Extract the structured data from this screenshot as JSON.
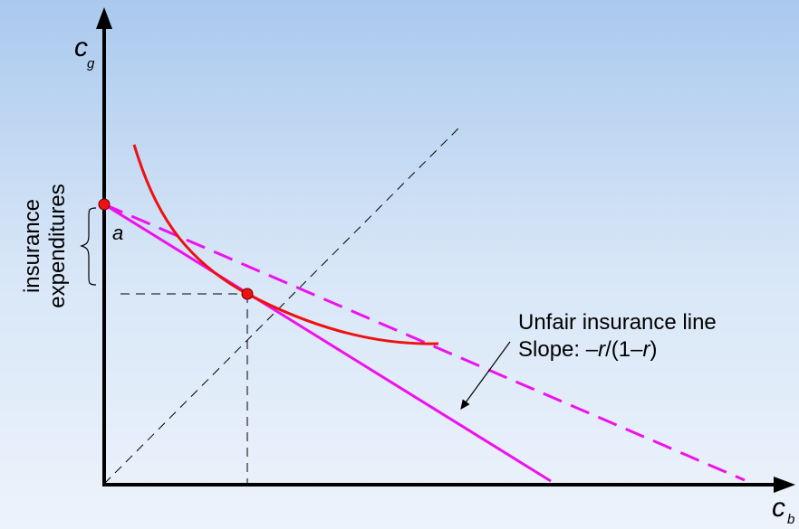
{
  "axes": {
    "y_label": "c",
    "y_subscript": "g",
    "x_label": "c",
    "x_subscript": "b"
  },
  "bracket": {
    "line1": "insurance",
    "line2": "expenditures"
  },
  "point_a_label": "a",
  "annotation": {
    "line1": "Unfair insurance line",
    "line2_prefix": "Slope: –",
    "line2_r1": "r",
    "line2_mid": "/(1–",
    "line2_r2": "r",
    "line2_suffix": ")"
  },
  "colors": {
    "axis": "#000000",
    "indifference_curve": "#ee1111",
    "budget_line": "#ee11ee",
    "guide": "#000000",
    "point_fill": "#ee1111"
  }
}
